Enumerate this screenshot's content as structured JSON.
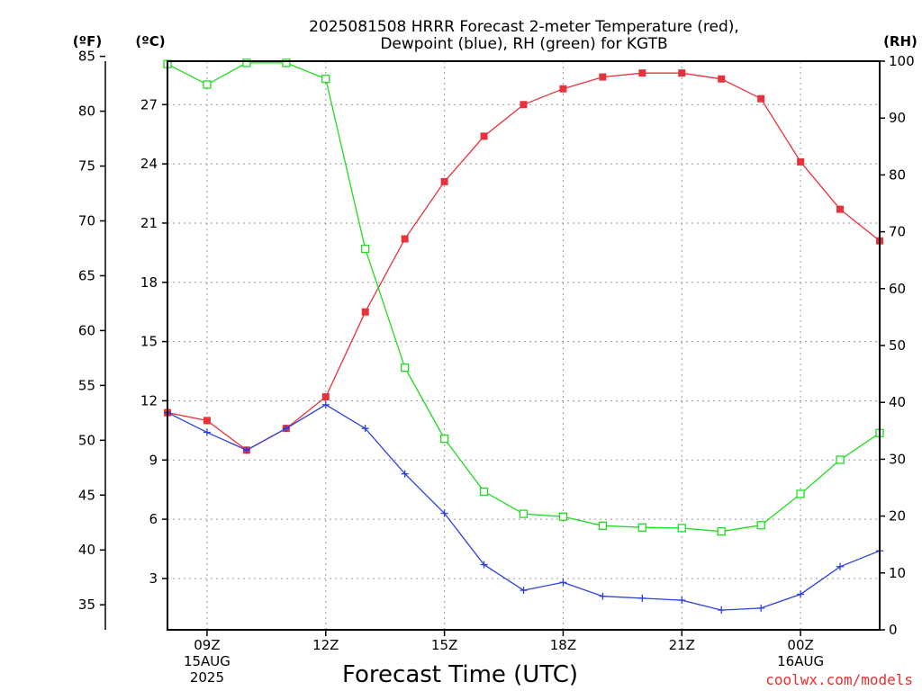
{
  "chart_data": {
    "type": "line",
    "title_line1": "2025081508 HRRR Forecast 2-meter Temperature (red),",
    "title_line2": "Dewpoint (blue), RH (green) for KGTB",
    "xlabel": "Forecast Time (UTC)",
    "unit_f": "(ºF)",
    "unit_c": "(ºC)",
    "unit_rh": "(RH)",
    "credit": "coolwx.com/models",
    "x_hours": [
      8,
      9,
      10,
      11,
      12,
      13,
      14,
      15,
      16,
      17,
      18,
      19,
      20,
      21,
      22,
      23,
      24,
      25,
      26
    ],
    "x_ticks": [
      {
        "hour": 9,
        "lines": [
          "09Z",
          "15AUG",
          "2025"
        ]
      },
      {
        "hour": 12,
        "lines": [
          "12Z"
        ]
      },
      {
        "hour": 15,
        "lines": [
          "15Z"
        ]
      },
      {
        "hour": 18,
        "lines": [
          "18Z"
        ]
      },
      {
        "hour": 21,
        "lines": [
          "21Z"
        ]
      },
      {
        "hour": 24,
        "lines": [
          "00Z",
          "16AUG"
        ]
      }
    ],
    "c_ticks": [
      3,
      6,
      9,
      12,
      15,
      18,
      21,
      24,
      27
    ],
    "f_ticks": [
      35,
      40,
      45,
      50,
      55,
      60,
      65,
      70,
      75,
      80,
      85
    ],
    "rh_ticks": [
      0,
      10,
      20,
      30,
      40,
      50,
      60,
      70,
      80,
      90,
      100
    ],
    "c_range": [
      0.4,
      29.2
    ],
    "rh_range": [
      0,
      100
    ],
    "grid": true,
    "colors": {
      "temperature": "#e8313a",
      "dewpoint": "#2b3fe0",
      "rh": "#1fdc1f",
      "credit": "#e03030"
    },
    "series": [
      {
        "name": "Temperature",
        "axis": "C",
        "marker": "square-filled",
        "values": [
          11.4,
          11.0,
          9.5,
          10.6,
          12.2,
          16.5,
          20.2,
          23.1,
          25.4,
          27.0,
          27.8,
          28.4,
          28.6,
          28.6,
          28.3,
          27.3,
          24.1,
          21.7,
          20.1
        ]
      },
      {
        "name": "Dewpoint",
        "axis": "C",
        "marker": "plus",
        "values": [
          11.4,
          10.4,
          9.5,
          10.6,
          11.8,
          10.6,
          8.3,
          6.3,
          3.7,
          2.4,
          2.8,
          2.1,
          2.0,
          1.9,
          1.4,
          1.5,
          2.2,
          3.6,
          4.4
        ]
      },
      {
        "name": "RH",
        "axis": "RH",
        "marker": "square-open",
        "values": [
          99.5,
          95.9,
          99.7,
          99.7,
          96.9,
          67.0,
          46.1,
          33.6,
          24.3,
          20.4,
          19.9,
          18.3,
          18.0,
          17.9,
          17.3,
          18.4,
          23.9,
          29.9,
          34.6
        ]
      }
    ]
  }
}
